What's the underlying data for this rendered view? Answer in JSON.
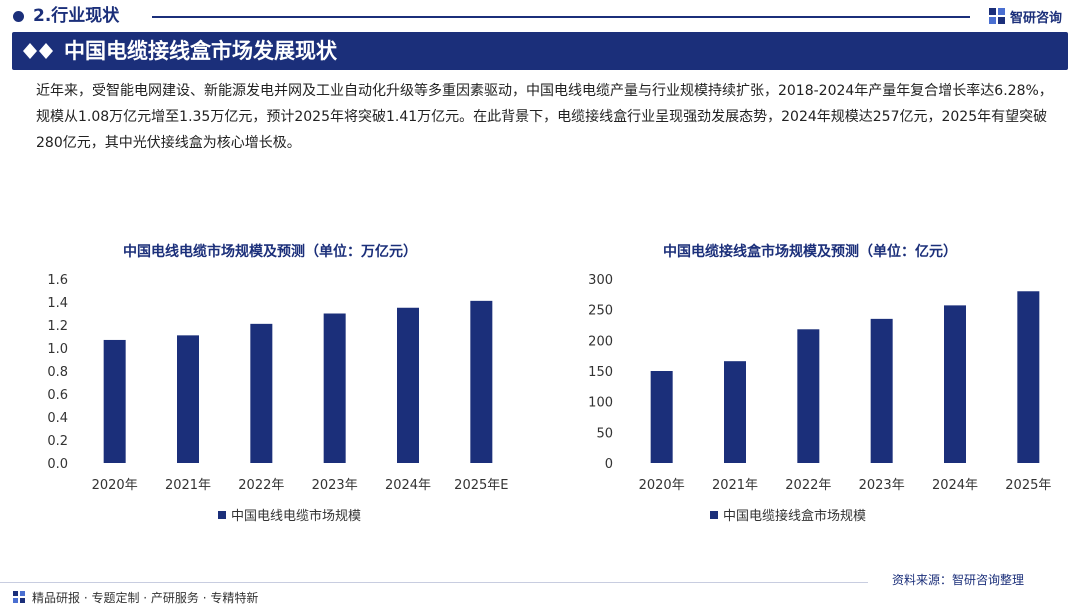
{
  "colors": {
    "brand": "#1b2f7a",
    "bar": "#1b2f7a",
    "axis_text": "#333333",
    "line_light": "#c8cde0"
  },
  "header": {
    "section": "2.行业现状",
    "logo_text": "智研咨询",
    "title": "中国电缆接线盒市场发展现状"
  },
  "intro": "近年来，受智能电网建设、新能源发电并网及工业自动化升级等多重因素驱动，中国电线电缆产量与行业规模持续扩张，2018-2024年产量年复合增长率达6.28%，规模从1.08万亿元增至1.35万亿元，预计2025年将突破1.41万亿元。在此背景下，电缆接线盒行业呈现强劲发展态势，2024年规模达257亿元，2025年有望突破280亿元，其中光伏接线盒为核心增长极。",
  "chart_data": [
    {
      "type": "bar",
      "title": "中国电线电缆市场规模及预测（单位：万亿元）",
      "categories": [
        "2020年",
        "2021年",
        "2022年",
        "2023年",
        "2024年",
        "2025年E"
      ],
      "series": [
        {
          "name": "中国电线电缆市场规模",
          "values": [
            1.07,
            1.11,
            1.21,
            1.3,
            1.35,
            1.41
          ]
        }
      ],
      "ylim": [
        0,
        1.6
      ],
      "yticks": [
        "0.0",
        "0.2",
        "0.4",
        "0.6",
        "0.8",
        "1.0",
        "1.2",
        "1.4",
        "1.6"
      ],
      "grid": false,
      "legend": "bottom"
    },
    {
      "type": "bar",
      "title": "中国电缆接线盒市场规模及预测（单位：亿元）",
      "categories": [
        "2020年",
        "2021年",
        "2022年",
        "2023年",
        "2024年",
        "2025年"
      ],
      "series": [
        {
          "name": "中国电缆接线盒市场规模",
          "values": [
            150,
            166,
            218,
            235,
            257,
            280
          ]
        }
      ],
      "ylim": [
        0,
        300
      ],
      "yticks": [
        "0",
        "50",
        "100",
        "150",
        "200",
        "250",
        "300"
      ],
      "grid": false,
      "legend": "bottom"
    }
  ],
  "footer": {
    "tagline": "精品研报 · 专题定制 · 产研服务 · 专精特新",
    "source": "资料来源：智研咨询整理"
  }
}
